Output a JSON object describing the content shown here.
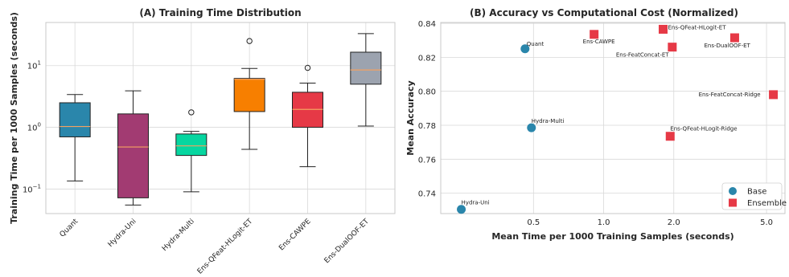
{
  "chart_data": [
    {
      "type": "box",
      "title": "(A) Training Time Distribution",
      "xlabel": "",
      "ylabel": "Training Time per 1000 Samples (seconds)",
      "yscale": "log",
      "ylim": [
        0.04,
        50
      ],
      "yticks": [
        {
          "value": 0.1,
          "base": "10",
          "exp": "−1"
        },
        {
          "value": 1,
          "base": "10",
          "exp": "0"
        },
        {
          "value": 10,
          "base": "10",
          "exp": "1"
        }
      ],
      "grid": true,
      "categories": [
        "Quant",
        "Hydra-Uni",
        "Hydra-Multi",
        "Ens-QFeat-HLogit-ET",
        "Ens-CAWPE",
        "Ens-DualOOF-ET"
      ],
      "boxes": [
        {
          "name": "Quant",
          "color": "#2a86ab",
          "whisker_low": 0.135,
          "q1": 0.7,
          "median": 1.03,
          "q3": 2.5,
          "whisker_high": 3.4,
          "outliers": []
        },
        {
          "name": "Hydra-Uni",
          "color": "#a23b72",
          "whisker_low": 0.055,
          "q1": 0.072,
          "median": 0.48,
          "q3": 1.65,
          "whisker_high": 3.9,
          "outliers": []
        },
        {
          "name": "Hydra-Multi",
          "color": "#06d6a0",
          "whisker_low": 0.09,
          "q1": 0.35,
          "median": 0.5,
          "q3": 0.78,
          "whisker_high": 0.86,
          "outliers": [
            1.75
          ]
        },
        {
          "name": "Ens-QFeat-HLogit-ET",
          "color": "#f77f00",
          "whisker_low": 0.44,
          "q1": 1.8,
          "median": 6.0,
          "q3": 6.2,
          "whisker_high": 9.0,
          "outliers": [
            25
          ]
        },
        {
          "name": "Ens-CAWPE",
          "color": "#e63946",
          "whisker_low": 0.23,
          "q1": 1.0,
          "median": 1.95,
          "q3": 3.7,
          "whisker_high": 5.2,
          "outliers": [
            9.2
          ]
        },
        {
          "name": "Ens-DualOOF-ET",
          "color": "#9ca3af",
          "whisker_low": 1.05,
          "q1": 5.0,
          "median": 8.5,
          "q3": 16.5,
          "whisker_high": 33,
          "outliers": []
        }
      ],
      "median_color": "#f4a261"
    },
    {
      "type": "scatter",
      "title": "(B) Accuracy vs Computational Cost (Normalized)",
      "xlabel": "Mean Time per 1000 Training Samples (seconds)",
      "ylabel": "Mean Accuracy",
      "xscale": "log",
      "xlim": [
        0.2,
        6.0
      ],
      "ylim": [
        0.728,
        0.8405
      ],
      "xticks": [
        "0.5",
        "1.0",
        "2.0",
        "5.0"
      ],
      "xtick_values": [
        0.5,
        1.0,
        2.0,
        5.0
      ],
      "yticks": [
        "0.74",
        "0.76",
        "0.78",
        "0.80",
        "0.82",
        "0.84"
      ],
      "ytick_values": [
        0.74,
        0.76,
        0.78,
        0.8,
        0.82,
        0.84
      ],
      "grid": true,
      "legend_position": "lower-right",
      "series": [
        {
          "name": "Base",
          "marker": "circle",
          "color": "#2a86ab",
          "points": [
            {
              "label": "Quant",
              "x": 0.46,
              "y": 0.825
            },
            {
              "label": "Hydra-Multi",
              "x": 0.49,
              "y": 0.7785
            },
            {
              "label": "Hydra-Uni",
              "x": 0.245,
              "y": 0.7305
            }
          ]
        },
        {
          "name": "Ensemble",
          "marker": "square",
          "color": "#e63946",
          "points": [
            {
              "label": "Ens-CAWPE",
              "x": 0.91,
              "y": 0.8335
            },
            {
              "label": "Ens-QFeat-HLogit-ET",
              "x": 1.8,
              "y": 0.8365
            },
            {
              "label": "Ens-FeatConcat-ET",
              "x": 1.97,
              "y": 0.826
            },
            {
              "label": "Ens-DualOOF-ET",
              "x": 3.65,
              "y": 0.8315
            },
            {
              "label": "Ens-FeatConcat-Ridge",
              "x": 5.35,
              "y": 0.798
            },
            {
              "label": "Ens-QFeat-HLogit-Ridge",
              "x": 1.93,
              "y": 0.7735
            }
          ]
        }
      ]
    }
  ]
}
